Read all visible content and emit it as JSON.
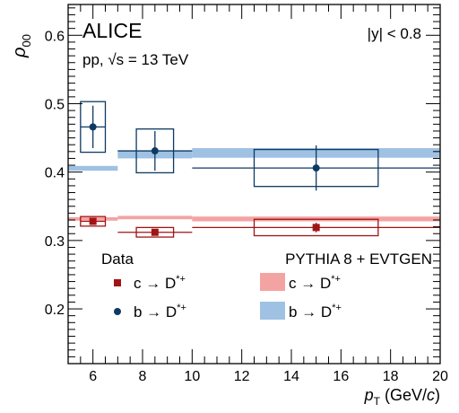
{
  "chart_data": {
    "type": "scatter",
    "title": "",
    "xlabel": "p_T (GeV/c)",
    "ylabel": "ρ_00",
    "xlim": [
      5,
      20
    ],
    "ylim": [
      0.12,
      0.645
    ],
    "x_major_ticks": [
      6,
      8,
      10,
      12,
      14,
      16,
      18,
      20
    ],
    "y_major_ticks": [
      0.2,
      0.3,
      0.4,
      0.5,
      0.6
    ],
    "grid": false,
    "annotations": {
      "experiment": "ALICE",
      "system": "pp, √s = 13 TeV",
      "rapidity": "|y| < 0.8"
    },
    "legend_data_header": "Data",
    "legend_model_header": "PYTHIA 8 + EVTGEN",
    "legend_placement": "bottom",
    "series": [
      {
        "name": "c → D*+",
        "color": "#a01414",
        "marker": "square",
        "points": [
          {
            "x": 6.0,
            "xlow": 5.5,
            "xhigh": 6.5,
            "y": 0.328,
            "stat": 0.004,
            "syst": 0.007,
            "sys_box_halfwidth": 0.5
          },
          {
            "x": 8.5,
            "xlow": 7.0,
            "xhigh": 10.0,
            "y": 0.312,
            "stat": 0.004,
            "syst": 0.007,
            "sys_box_halfwidth": 0.75
          },
          {
            "x": 15.0,
            "xlow": 10.0,
            "xhigh": 20.0,
            "y": 0.319,
            "stat": 0.007,
            "syst": 0.012,
            "sys_box_halfwidth": 2.5
          }
        ]
      },
      {
        "name": "b → D*+",
        "color": "#0d3a63",
        "marker": "circle",
        "points": [
          {
            "x": 6.0,
            "xlow": 5.5,
            "xhigh": 6.5,
            "y": 0.466,
            "stat": 0.031,
            "syst": 0.037,
            "sys_box_halfwidth": 0.5
          },
          {
            "x": 8.5,
            "xlow": 7.0,
            "xhigh": 10.0,
            "y": 0.431,
            "stat": 0.029,
            "syst": 0.032,
            "sys_box_halfwidth": 0.75
          },
          {
            "x": 15.0,
            "xlow": 10.0,
            "xhigh": 20.0,
            "y": 0.406,
            "stat": 0.033,
            "syst": 0.027,
            "sys_box_halfwidth": 2.5
          }
        ]
      }
    ],
    "model_series": [
      {
        "name": "c → D*+",
        "color": "#f4a3a3",
        "bands": [
          {
            "xlow": 5.0,
            "xhigh": 7.0,
            "ylow": 0.329,
            "yhigh": 0.334
          },
          {
            "xlow": 7.0,
            "xhigh": 10.0,
            "ylow": 0.331,
            "yhigh": 0.336
          },
          {
            "xlow": 10.0,
            "xhigh": 20.0,
            "ylow": 0.328,
            "yhigh": 0.335
          }
        ]
      },
      {
        "name": "b → D*+",
        "color": "#9fc1e3",
        "bands": [
          {
            "xlow": 5.0,
            "xhigh": 7.0,
            "ylow": 0.402,
            "yhigh": 0.409
          },
          {
            "xlow": 7.0,
            "xhigh": 10.0,
            "ylow": 0.42,
            "yhigh": 0.431
          },
          {
            "xlow": 10.0,
            "xhigh": 20.0,
            "ylow": 0.421,
            "yhigh": 0.435
          }
        ]
      }
    ]
  }
}
